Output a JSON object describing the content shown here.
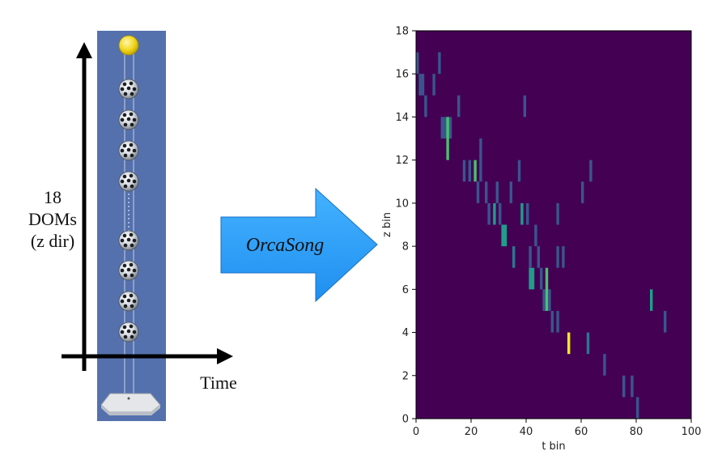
{
  "diagram": {
    "left_label": [
      "18",
      "DOMs",
      "(z dir)"
    ],
    "time_label": "Time",
    "arrow_label": "OrcaSong",
    "dom_count_shown": 8
  },
  "chart_data": {
    "type": "heatmap",
    "xlabel": "t bin",
    "ylabel": "z bin",
    "xlim": [
      0,
      100
    ],
    "ylim": [
      0,
      18
    ],
    "xticks": [
      0,
      20,
      40,
      60,
      80,
      100
    ],
    "yticks": [
      0,
      2,
      4,
      6,
      8,
      10,
      12,
      14,
      16,
      18
    ],
    "background_color": "#440154",
    "cells": [
      [
        0,
        16,
        1,
        1
      ],
      [
        1,
        15,
        2,
        1
      ],
      [
        3,
        14,
        1,
        1
      ],
      [
        6,
        15,
        1,
        1
      ],
      [
        8,
        16,
        1,
        1
      ],
      [
        9,
        13,
        1,
        1
      ],
      [
        10,
        13,
        3,
        1
      ],
      [
        11,
        12,
        1,
        2
      ],
      [
        15,
        14,
        1,
        1
      ],
      [
        17,
        11,
        1,
        1
      ],
      [
        19,
        11,
        1,
        1
      ],
      [
        21,
        11,
        1,
        1
      ],
      [
        22,
        10,
        1,
        1
      ],
      [
        23,
        11,
        1,
        2
      ],
      [
        25,
        10,
        1,
        1
      ],
      [
        26,
        9,
        1,
        1
      ],
      [
        28,
        9,
        1,
        1
      ],
      [
        29,
        10,
        1,
        1
      ],
      [
        30,
        9,
        1,
        1
      ],
      [
        31,
        8,
        2,
        1
      ],
      [
        34,
        10,
        1,
        1
      ],
      [
        35,
        7,
        1,
        1
      ],
      [
        37,
        11,
        1,
        1
      ],
      [
        38,
        9,
        1,
        1
      ],
      [
        39,
        14,
        1,
        1
      ],
      [
        40,
        9,
        1,
        1
      ],
      [
        41,
        6,
        2,
        1
      ],
      [
        41,
        7,
        1,
        1
      ],
      [
        43,
        8,
        1,
        1
      ],
      [
        44,
        7,
        1,
        1
      ],
      [
        45,
        6,
        1,
        1
      ],
      [
        46,
        5,
        1,
        1
      ],
      [
        47,
        5,
        1,
        2
      ],
      [
        48,
        5,
        1,
        1
      ],
      [
        49,
        4,
        1,
        1
      ],
      [
        51,
        4,
        1,
        1
      ],
      [
        51,
        7,
        1,
        1
      ],
      [
        51,
        9,
        1,
        1
      ],
      [
        53,
        7,
        1,
        1
      ],
      [
        55,
        3,
        1,
        1
      ],
      [
        60,
        10,
        1,
        1
      ],
      [
        62,
        3,
        1,
        1
      ],
      [
        63,
        11,
        1,
        1
      ],
      [
        68,
        2,
        1,
        1
      ],
      [
        75,
        1,
        1,
        1
      ],
      [
        78,
        1,
        1,
        1
      ],
      [
        80,
        0,
        1,
        1
      ],
      [
        85,
        5,
        1,
        1
      ],
      [
        90,
        4,
        1,
        1
      ]
    ],
    "cell_colors": [
      "#39568c",
      "#39568c",
      "#39568c",
      "#39568c",
      "#39568c",
      "#39568c",
      "#39568c",
      "#4ac16d",
      "#39568c",
      "#39568c",
      "#39568c",
      "#4ac16d",
      "#39568c",
      "#39568c",
      "#39568c",
      "#39568c",
      "#1f9e89",
      "#39568c",
      "#39568c",
      "#1f9e89",
      "#39568c",
      "#2a788e",
      "#39568c",
      "#1f9e89",
      "#39568c",
      "#39568c",
      "#1f9e89",
      "#39568c",
      "#39568c",
      "#39568c",
      "#39568c",
      "#39568c",
      "#4ac16d",
      "#39568c",
      "#39568c",
      "#39568c",
      "#39568c",
      "#39568c",
      "#39568c",
      "#fde725",
      "#39568c",
      "#2a788e",
      "#39568c",
      "#39568c",
      "#39568c",
      "#39568c",
      "#39568c",
      "#1f9e89",
      "#39568c"
    ]
  }
}
